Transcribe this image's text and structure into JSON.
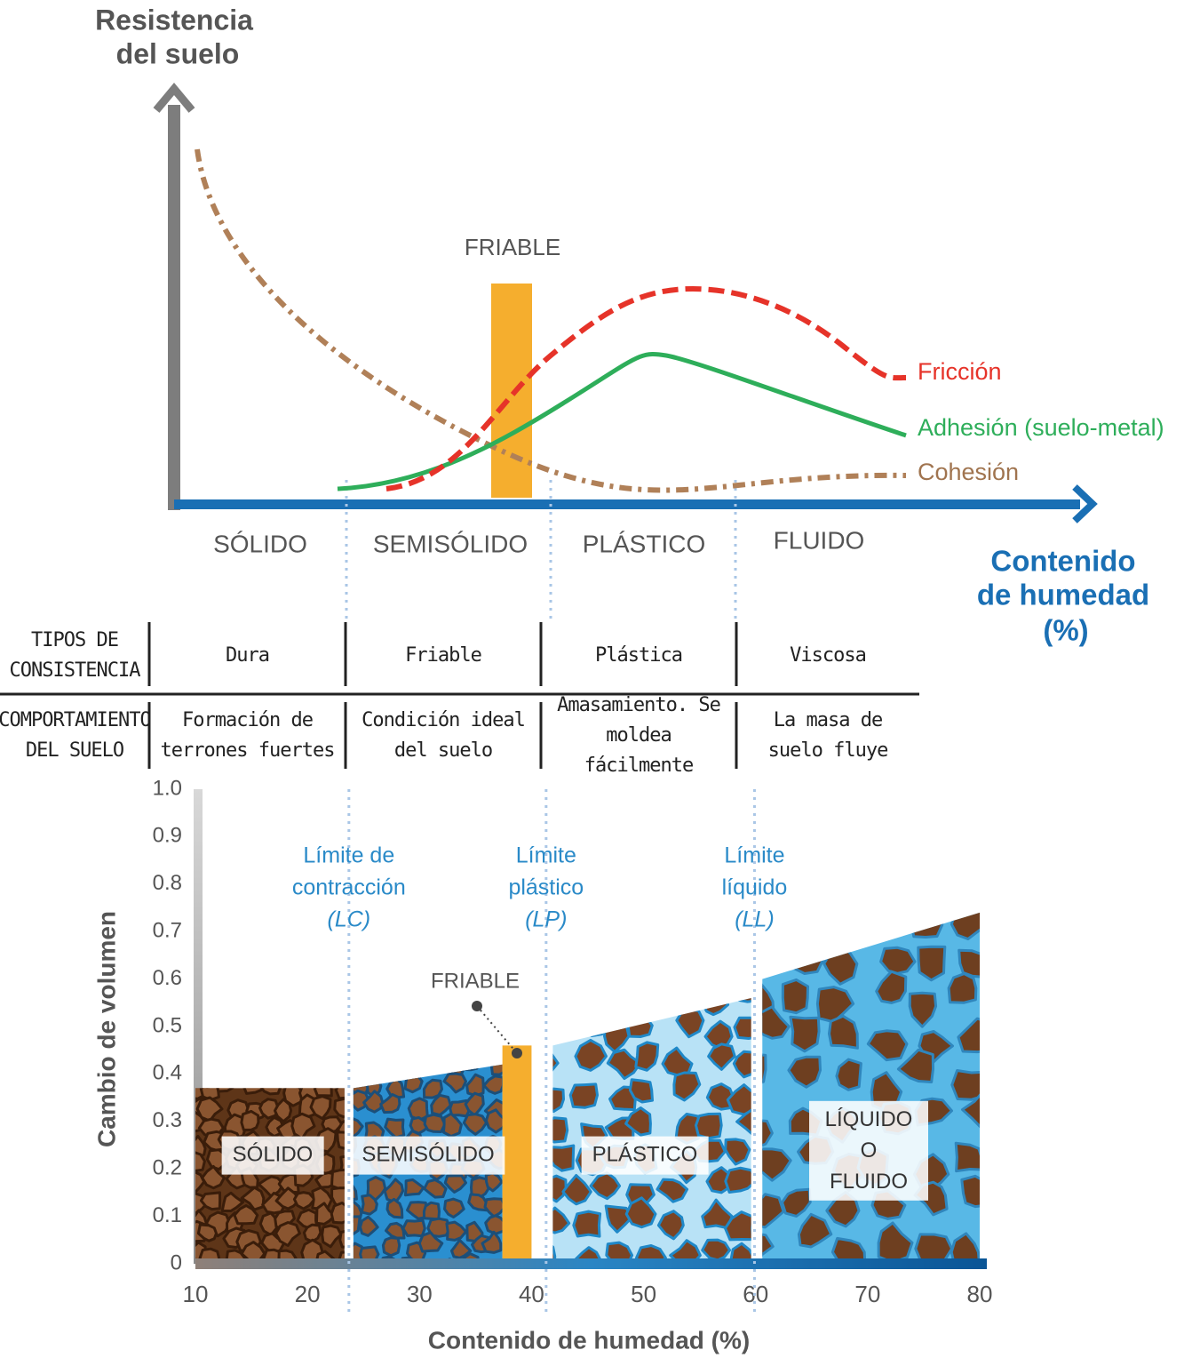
{
  "top_diagram": {
    "y_axis_label": [
      "Resistencia",
      "del suelo"
    ],
    "x_axis_label": [
      "Contenido",
      "de humedad",
      "(%)"
    ],
    "friable_label": "FRIABLE",
    "zones": [
      "SÓLIDO",
      "SEMISÓLIDO",
      "PLÁSTICO",
      "FLUIDO"
    ],
    "curves": [
      "Fricción",
      "Adhesión (suelo-metal)",
      "Cohesión"
    ]
  },
  "table": {
    "rows": [
      [
        "TIPOS DE CONSISTENCIA",
        "Dura",
        "Friable",
        "Plástica",
        "Viscosa"
      ],
      [
        "COMPORTAMIENTO DEL SUELO",
        "Formación de terrones fuertes",
        "Condición ideal del suelo",
        "Amasamiento. Se moldea fácilmente",
        "La masa de suelo fluye"
      ]
    ]
  },
  "chart_data": {
    "type": "area",
    "x_label": "Contenido de humedad (%)",
    "y_label": "Cambio de volumen",
    "xlim": [
      10,
      80
    ],
    "ylim": [
      0,
      1
    ],
    "xticks": [
      10,
      20,
      30,
      40,
      50,
      60,
      70,
      80
    ],
    "yticks": [
      0,
      0.1,
      0.2,
      0.3,
      0.4,
      0.5,
      0.6,
      0.7,
      0.8,
      0.9,
      {
        "value": 1,
        "label": "1.0"
      }
    ],
    "series": [
      {
        "name": "SÓLIDO",
        "color": "#5e3518",
        "x": [
          10,
          23.3
        ],
        "values": [
          0.37,
          0.37
        ]
      },
      {
        "name": "SEMISÓLIDO",
        "color": "#2a8fd0",
        "x": [
          24.1,
          37.4
        ],
        "values": [
          0.37,
          0.42
        ]
      },
      {
        "name": "PLÁSTICO",
        "color": "#b8e2f6",
        "x": [
          41.9,
          59.6
        ],
        "values": [
          0.46,
          0.56
        ]
      },
      {
        "name": "LÍQUIDO O FLUIDO",
        "color": "#58b8e6",
        "x": [
          60.6,
          80
        ],
        "values": [
          0.6,
          0.74
        ]
      },
      {
        "name": "FRIABLE",
        "color": "#f5ae2e",
        "x": [
          37.4,
          40
        ],
        "values": [
          0.46,
          0.46
        ]
      }
    ],
    "limits": [
      {
        "x": 23.7,
        "label": [
          "Límite de",
          "contracción",
          "(LC)"
        ]
      },
      {
        "x": 41.3,
        "label": [
          "Límite",
          "plástico",
          "(LP)"
        ]
      },
      {
        "x": 59.9,
        "label": [
          "Límite",
          "líquido",
          "(LL)"
        ]
      }
    ]
  }
}
